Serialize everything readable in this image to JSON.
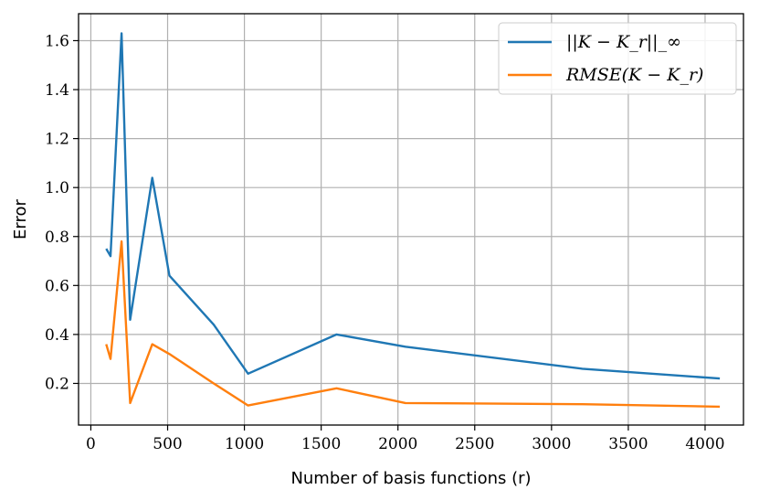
{
  "chart_data": {
    "type": "line",
    "xlabel": "Number of basis functions (r)",
    "ylabel": "Error",
    "xlim": [
      -80,
      4250
    ],
    "ylim": [
      0.03,
      1.71
    ],
    "xticks": [
      0,
      500,
      1000,
      1500,
      2000,
      2500,
      3000,
      3500,
      4000
    ],
    "yticks": [
      0.2,
      0.4,
      0.6,
      0.8,
      1.0,
      1.2,
      1.4,
      1.6
    ],
    "ytick_labels": [
      "0.2",
      "0.4",
      "0.6",
      "0.8",
      "1.0",
      "1.2",
      "1.4",
      "1.6"
    ],
    "grid": true,
    "legend_position": "top-right",
    "series": [
      {
        "name": "||K − K_r||_∞",
        "color": "#1f77b4",
        "x": [
          100,
          128,
          200,
          256,
          400,
          512,
          800,
          1024,
          1600,
          2048,
          3200,
          4096
        ],
        "y": [
          0.75,
          0.72,
          1.63,
          0.46,
          1.04,
          0.64,
          0.44,
          0.24,
          0.4,
          0.35,
          0.26,
          0.22
        ]
      },
      {
        "name": "RMSE(K − K_r)",
        "color": "#ff7f0e",
        "x": [
          100,
          128,
          200,
          256,
          400,
          512,
          800,
          1024,
          1600,
          2048,
          3200,
          4096
        ],
        "y": [
          0.36,
          0.3,
          0.78,
          0.12,
          0.36,
          0.32,
          0.2,
          0.11,
          0.18,
          0.12,
          0.115,
          0.105
        ]
      }
    ]
  }
}
